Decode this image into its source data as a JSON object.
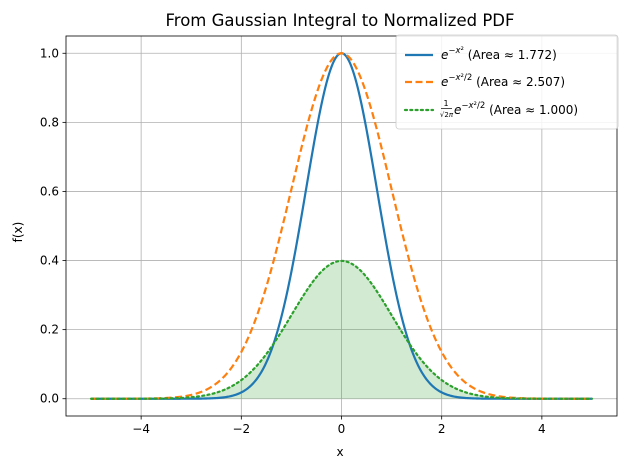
{
  "chart_data": {
    "type": "line",
    "title": "From Gaussian Integral to Normalized PDF",
    "xlabel": "x",
    "ylabel": "f(x)",
    "xlim": [
      -5.5,
      5.5
    ],
    "ylim": [
      -0.05,
      1.05
    ],
    "x_ticks": [
      -4,
      -2,
      0,
      2,
      4
    ],
    "x_tick_labels": [
      "−4",
      "−2",
      "0",
      "2",
      "4"
    ],
    "y_ticks": [
      0.0,
      0.2,
      0.4,
      0.6,
      0.8,
      1.0
    ],
    "y_tick_labels": [
      "0.0",
      "0.2",
      "0.4",
      "0.6",
      "0.8",
      "1.0"
    ],
    "grid": true,
    "legend_position": "top-right",
    "x_range": [
      -5,
      5
    ],
    "series": [
      {
        "name": "exp_neg_x2",
        "formula": "exp(-x^2)",
        "area_label": "(Area ≈ 1.772)",
        "color": "#1f77b4",
        "style": "solid",
        "fill": false
      },
      {
        "name": "exp_neg_x2_half",
        "formula": "exp(-x^2/2)",
        "area_label": "(Area ≈ 2.507)",
        "color": "#ff7f0e",
        "style": "dashed",
        "fill": false
      },
      {
        "name": "normal_pdf",
        "formula": "exp(-x^2/2)/sqrt(2*pi)",
        "area_label": "(Area ≈ 1.000)",
        "color": "#2ca02c",
        "style": "dotted",
        "fill": true,
        "fill_color": "#2ca02c"
      }
    ]
  }
}
